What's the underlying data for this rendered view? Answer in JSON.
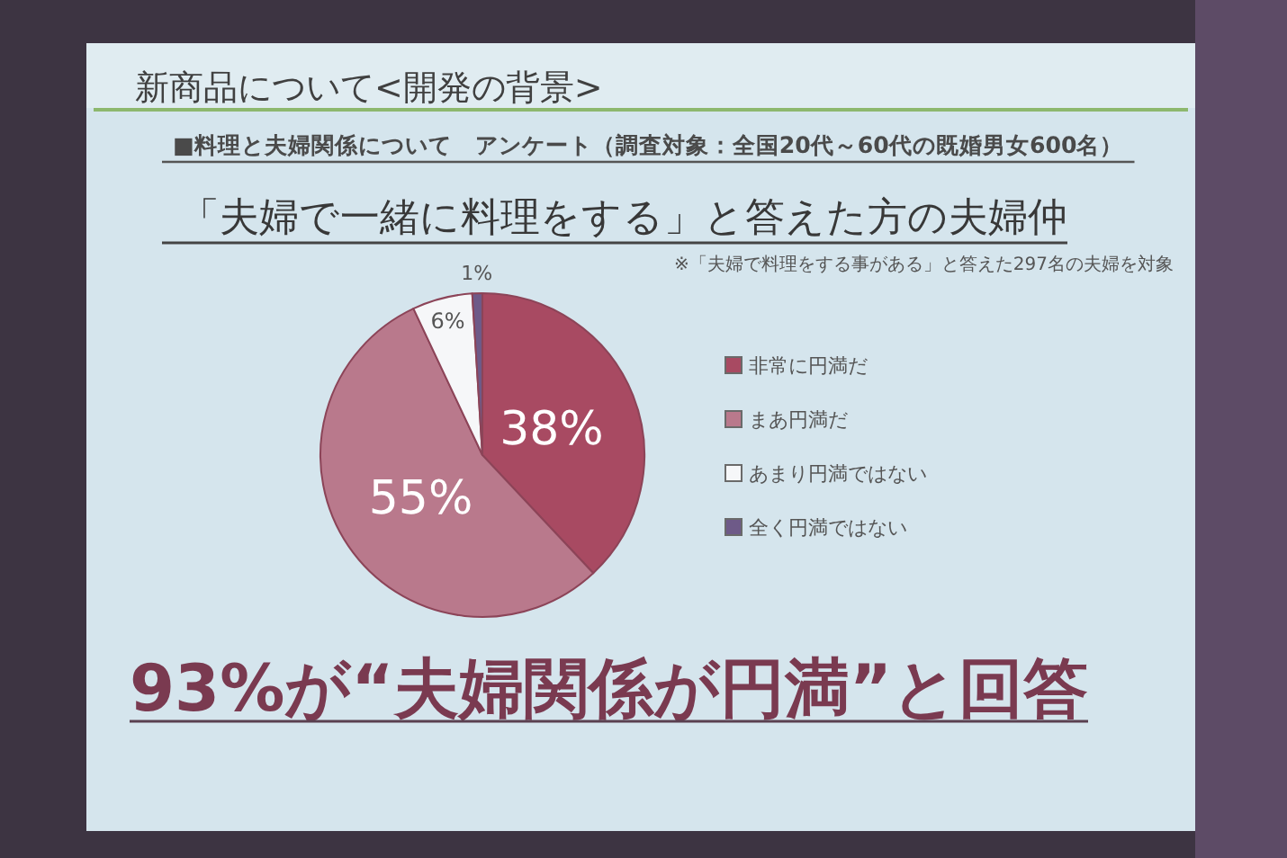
{
  "chart_data": {
    "type": "pie",
    "title": "「夫婦で一緒に料理をする」と答えた方の夫婦仲",
    "subtitle": "■料理と夫婦関係について　アンケート（調査対象：全国20代～60代の既婚男女600名）",
    "categories": [
      "非常に円満だ",
      "まあ円満だ",
      "あまり円満ではない",
      "全く円満ではない"
    ],
    "values": [
      38,
      55,
      6,
      1
    ],
    "colors": [
      "#a84a62",
      "#b9798c",
      "#f6f7f9",
      "#6e5a88"
    ],
    "value_labels": [
      "38%",
      "55%",
      "6%",
      "1%"
    ],
    "legend": "right",
    "annotations": [
      "新商品について<開発の背景>",
      "※「夫婦で料理をする事がある」と答えた297名の夫婦を対象",
      "93%が“夫婦関係が円満”と回答"
    ]
  }
}
